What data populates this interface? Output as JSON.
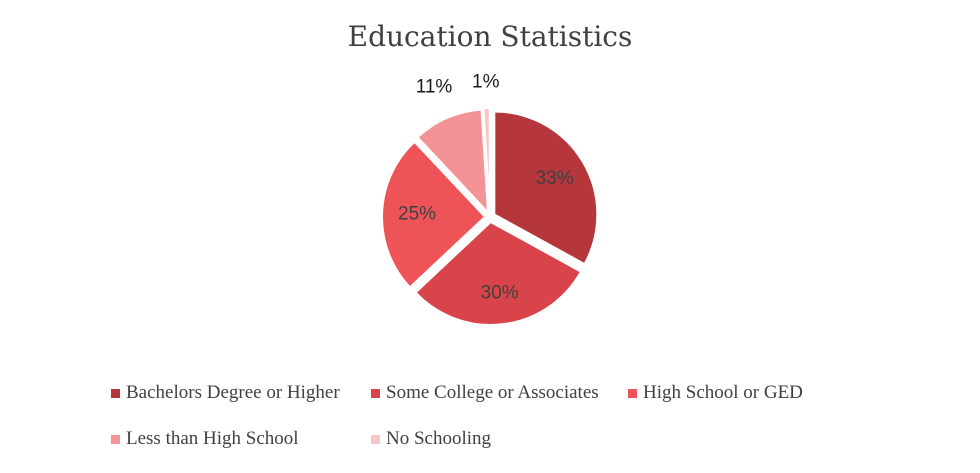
{
  "chart_data": {
    "type": "pie",
    "title": "Education Statistics",
    "slices": [
      {
        "label": "Bachelors Degree or Higher",
        "value": 33,
        "display": "33%",
        "color": "#b5373c"
      },
      {
        "label": "Some College or Associates",
        "value": 30,
        "display": "30%",
        "color": "#d8444a"
      },
      {
        "label": "High School or GED",
        "value": 25,
        "display": "25%",
        "color": "#ee5457"
      },
      {
        "label": "Less than High School",
        "value": 11,
        "display": "11%",
        "color": "#f39395"
      },
      {
        "label": "No Schooling",
        "value": 1,
        "display": "1%",
        "color": "#f7c6c8"
      }
    ],
    "legend_position": "bottom"
  }
}
